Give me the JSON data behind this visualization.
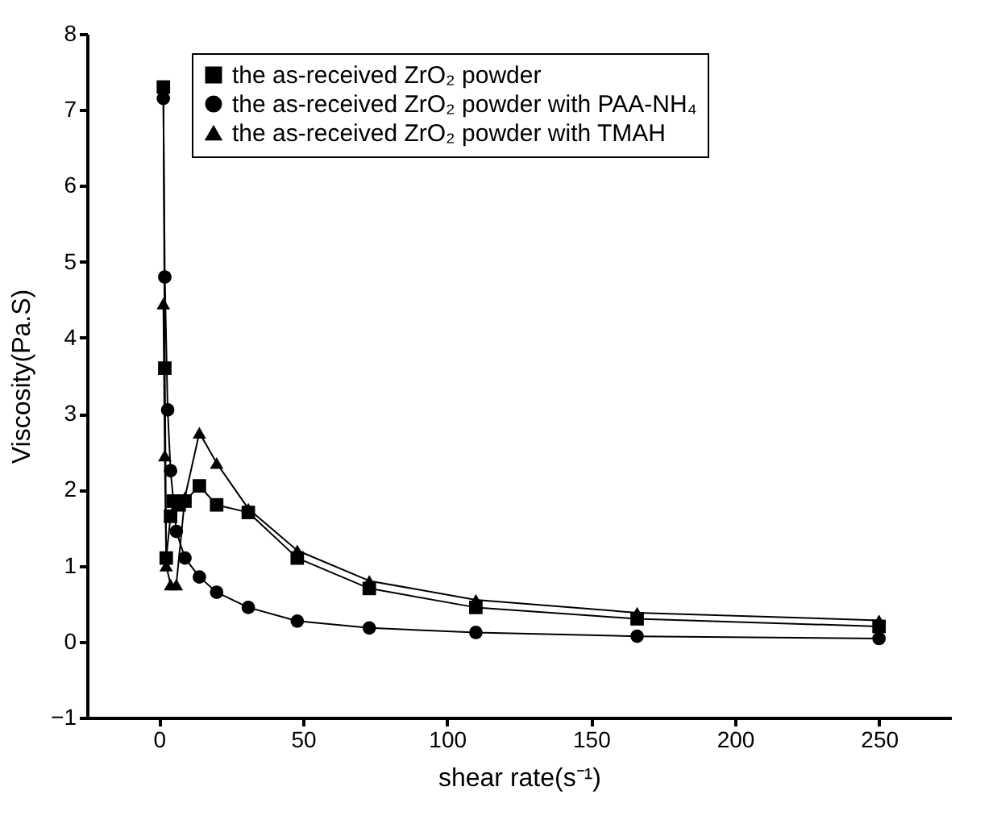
{
  "chart_data": {
    "type": "line",
    "xlabel": "shear rate(s⁻¹)",
    "ylabel": "Viscosity(Pa.S)",
    "xlim": [
      -25,
      275
    ],
    "xticks": [
      0,
      50,
      100,
      150,
      200,
      250
    ],
    "ylim": [
      -1,
      8
    ],
    "yticks": [
      -1,
      0,
      1,
      2,
      3,
      4,
      5,
      6,
      7,
      8
    ],
    "grid": false,
    "legend": "top left",
    "series": [
      {
        "name": "the as-received ZrO₂ powder",
        "color": "#000000",
        "marker": "square",
        "x": [
          1.5,
          2,
          2.5,
          4,
          5,
          7,
          9,
          14,
          20,
          31,
          48,
          73,
          110,
          166,
          250
        ],
        "values": [
          7.3,
          3.6,
          1.1,
          1.65,
          1.85,
          1.8,
          1.85,
          2.05,
          1.8,
          1.7,
          1.1,
          0.7,
          0.45,
          0.3,
          0.2
        ]
      },
      {
        "name": "the as-received ZrO₂ powder with PAA-NH₄",
        "color": "#000000",
        "marker": "circle",
        "x": [
          1.5,
          2,
          3,
          4,
          6,
          9,
          14,
          20,
          31,
          48,
          73,
          110,
          166,
          250
        ],
        "values": [
          7.15,
          4.8,
          3.05,
          2.25,
          1.45,
          1.1,
          0.85,
          0.65,
          0.45,
          0.27,
          0.18,
          0.12,
          0.07,
          0.04
        ]
      },
      {
        "name": "the as-received ZrO₂ powder with TMAH",
        "color": "#000000",
        "marker": "triangle",
        "x": [
          1.5,
          2,
          2.5,
          4,
          6,
          9,
          14,
          20,
          31,
          48,
          73,
          110,
          166,
          250
        ],
        "values": [
          4.45,
          2.45,
          1.0,
          0.75,
          0.75,
          1.9,
          2.75,
          2.35,
          1.75,
          1.2,
          0.8,
          0.55,
          0.38,
          0.28
        ]
      }
    ]
  }
}
